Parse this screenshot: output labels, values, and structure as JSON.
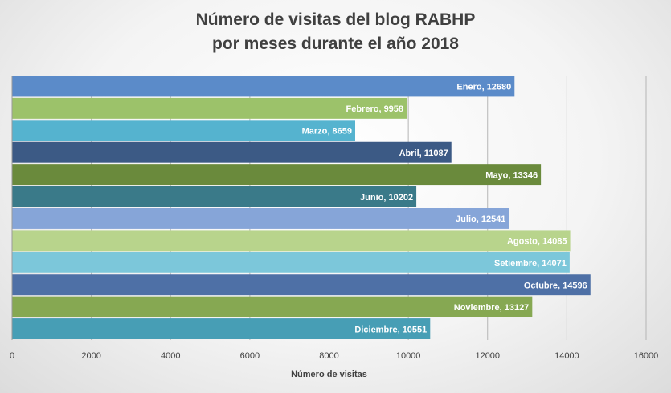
{
  "chart_data": {
    "type": "bar",
    "orientation": "horizontal",
    "title_lines": [
      "Número de visitas del blog RABHP",
      "por meses durante el año 2018"
    ],
    "xlabel": "Número de visitas",
    "ylabel": "",
    "xlim": [
      0,
      16000
    ],
    "xticks": [
      0,
      2000,
      4000,
      6000,
      8000,
      10000,
      12000,
      14000,
      16000
    ],
    "grid": true,
    "legend": "none",
    "categories": [
      "Enero",
      "Febrero",
      "Marzo",
      "Abril",
      "Mayo",
      "Junio",
      "Julio",
      "Agosto",
      "Setiembre",
      "Octubre",
      "Noviembre",
      "Diciembre"
    ],
    "values": [
      12680,
      9958,
      8659,
      11087,
      13346,
      10202,
      12541,
      14085,
      14071,
      14596,
      13127,
      10551
    ],
    "data_labels": [
      "Enero, 12680",
      "Febrero, 9958",
      "Marzo, 8659",
      "Abril, 11087",
      "Mayo, 13346",
      "Junio, 10202",
      "Julio, 12541",
      "Agosto, 14085",
      "Setiembre, 14071",
      "Octubre, 14596",
      "Noviembre, 13127",
      "Diciembre, 10551"
    ],
    "colors": [
      "#5b8bc9",
      "#9cc26a",
      "#55b3cf",
      "#3c5a85",
      "#6a8a3c",
      "#3a7a89",
      "#86a5d8",
      "#b8d48c",
      "#7cc7da",
      "#4e70a6",
      "#86a852",
      "#479eb5"
    ]
  }
}
